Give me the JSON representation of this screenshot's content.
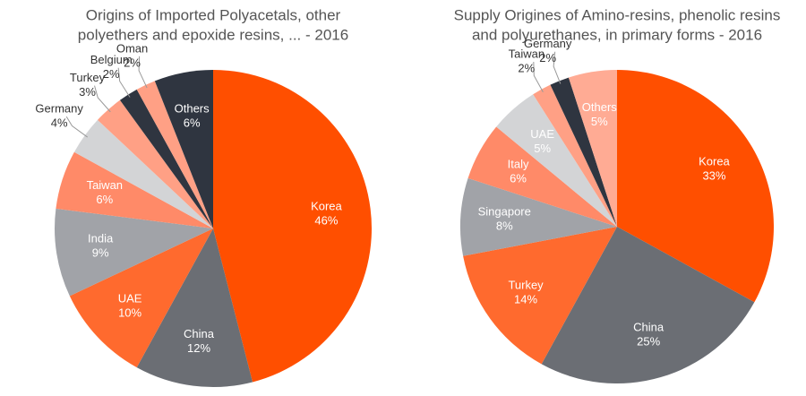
{
  "chart_data": [
    {
      "type": "pie",
      "title": [
        "Origins of Imported Polyacetals, other",
        "polyethers and epoxide resins, ... - 2016"
      ],
      "categories": [
        "Korea",
        "China",
        "UAE",
        "India",
        "Taiwan",
        "Germany",
        "Turkey",
        "Belgium",
        "Oman",
        "Others"
      ],
      "values": [
        46,
        12,
        10,
        9,
        6,
        4,
        3,
        2,
        2,
        6
      ],
      "value_labels": [
        "46%",
        "12%",
        "10%",
        "9%",
        "6%",
        "4%",
        "3%",
        "2%",
        "2%",
        "6%"
      ],
      "colors": [
        "#ff4f00",
        "#6b6e74",
        "#ff6a2e",
        "#a1a3a8",
        "#ff8a68",
        "#d3d4d6",
        "#ffa085",
        "#2f3540",
        "#ffa085",
        "#2f3540"
      ]
    },
    {
      "type": "pie",
      "title": [
        "Supply Origines of Amino-resins, phenolic resins",
        "and polyurethanes, in primary forms - 2016"
      ],
      "categories": [
        "Korea",
        "China",
        "Turkey",
        "Singapore",
        "Italy",
        "UAE",
        "Taiwan",
        "Germany",
        "Others"
      ],
      "values": [
        33,
        25,
        14,
        8,
        6,
        5,
        2,
        2,
        5
      ],
      "value_labels": [
        "33%",
        "25%",
        "14%",
        "8%",
        "6%",
        "5%",
        "2%",
        "2%",
        "5%"
      ],
      "colors": [
        "#ff4f00",
        "#6b6e74",
        "#ff6a2e",
        "#a1a3a8",
        "#ff8a68",
        "#d3d4d6",
        "#ffa085",
        "#2f3540",
        "#ffab94"
      ]
    }
  ]
}
